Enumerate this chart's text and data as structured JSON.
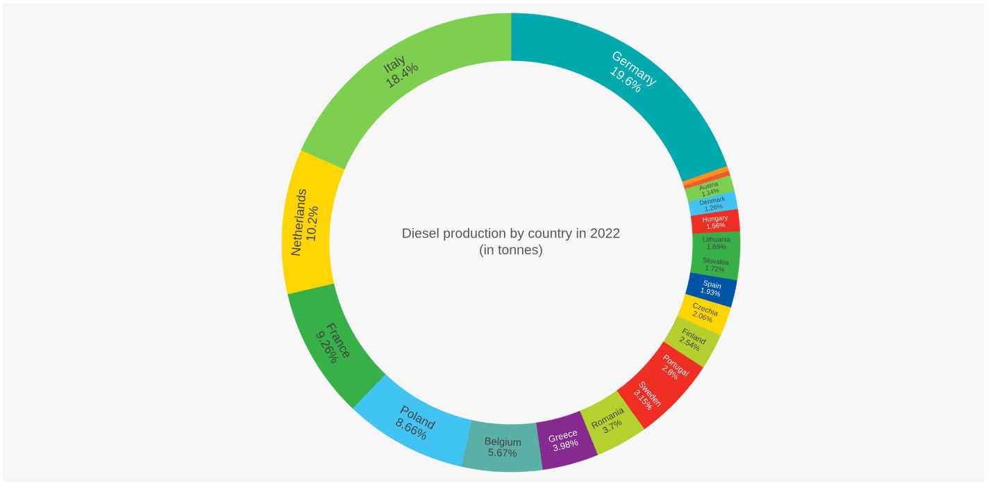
{
  "chart_data": {
    "type": "donut",
    "title": "Diesel production by country in 2022",
    "subtitle": "(in tonnes)",
    "categories": [
      "Germany",
      null,
      null,
      "Austria",
      "Denmark",
      "Hungary",
      "Lithuania",
      "Slovakia",
      "Spain",
      "Czechia",
      "Finland",
      "Portugal",
      "Sweden",
      "Romania",
      "Greece",
      "Belgium",
      "Poland",
      "France",
      "Netherlands",
      "Italy"
    ],
    "values": [
      19.6,
      0.35,
      0.33,
      1.14,
      1.26,
      1.56,
      1.69,
      1.72,
      1.93,
      2.06,
      2.54,
      2.8,
      3.15,
      3.7,
      3.98,
      5.67,
      8.66,
      9.26,
      10.2,
      18.4
    ],
    "value_labels": [
      "19.6%",
      null,
      null,
      "1.14%",
      "1.26%",
      "1.56%",
      "1.69%",
      "1.72%",
      "1.93%",
      "2.06%",
      "2.54%",
      "2.8%",
      "3.15%",
      "3.7%",
      "3.98%",
      "5.67%",
      "8.66%",
      "9.26%",
      "10.2%",
      "18.4%"
    ],
    "colors": [
      "#01a9ae",
      "#f7941d",
      "#f15a29",
      "#7dd04f",
      "#41c4f2",
      "#ef2e24",
      "#38b048",
      "#38b048",
      "#0054a6",
      "#ffd500",
      "#b5cf2f",
      "#ef2e24",
      "#ef2e24",
      "#b5d12e",
      "#872a8f",
      "#5bb0a5",
      "#41c4f2",
      "#38b048",
      "#ffd500",
      "#7dd04f"
    ]
  }
}
